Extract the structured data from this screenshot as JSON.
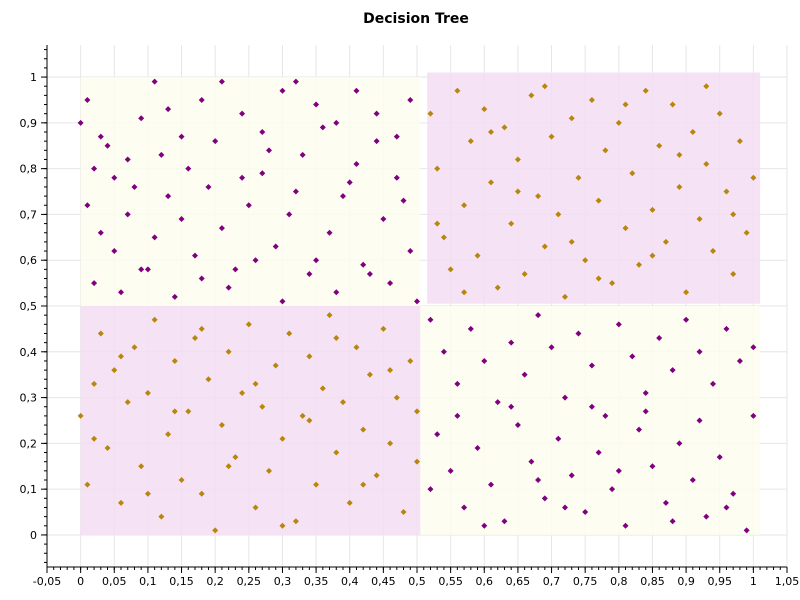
{
  "chart_data": {
    "type": "scatter",
    "title": "Decision Tree",
    "xlabel": "",
    "ylabel": "",
    "xlim": [
      -0.05,
      1.05
    ],
    "ylim": [
      -0.07,
      1.07
    ],
    "x_ticks": [
      -0.05,
      0,
      0.05,
      0.1,
      0.15,
      0.2,
      0.25,
      0.3,
      0.35,
      0.4,
      0.45,
      0.5,
      0.55,
      0.6,
      0.65,
      0.7,
      0.75,
      0.8,
      0.85,
      0.9,
      0.95,
      1,
      1.05
    ],
    "x_tick_labels": [
      "-0,05",
      "0",
      "0,05",
      "0,1",
      "0,15",
      "0,2",
      "0,25",
      "0,3",
      "0,35",
      "0,4",
      "0,45",
      "0,5",
      "0,55",
      "0,6",
      "0,65",
      "0,7",
      "0,75",
      "0,8",
      "0,85",
      "0,9",
      "0,95",
      "1",
      "1,05"
    ],
    "y_ticks": [
      0,
      0.1,
      0.2,
      0.3,
      0.4,
      0.5,
      0.6,
      0.7,
      0.8,
      0.9,
      1
    ],
    "y_tick_labels": [
      "0",
      "0,1",
      "0,2",
      "0,3",
      "0,4",
      "0,5",
      "0,6",
      "0,7",
      "0,8",
      "0,9",
      "1"
    ],
    "grid": true,
    "colors": {
      "purple": "#800080",
      "gold": "#b8860b",
      "region_purple": "#f3def3",
      "region_yellow": "#fdfdee"
    },
    "regions": [
      {
        "x": [
          0.0,
          0.505
        ],
        "y": [
          0.5,
          1.0
        ],
        "color": "region_yellow"
      },
      {
        "x": [
          0.0,
          0.505
        ],
        "y": [
          0.0,
          0.5
        ],
        "color": "region_purple"
      },
      {
        "x": [
          0.505,
          1.01
        ],
        "y": [
          0.0,
          0.5
        ],
        "color": "region_yellow"
      },
      {
        "x": [
          0.515,
          1.01
        ],
        "y": [
          0.505,
          1.01
        ],
        "color": "region_purple"
      }
    ],
    "series": [
      {
        "color": "purple",
        "points": [
          [
            0.0,
            0.9
          ],
          [
            0.01,
            0.95
          ],
          [
            0.02,
            0.8
          ],
          [
            0.03,
            0.87
          ],
          [
            0.05,
            0.78
          ],
          [
            0.07,
            0.82
          ],
          [
            0.09,
            0.91
          ],
          [
            0.11,
            0.99
          ],
          [
            0.13,
            0.93
          ],
          [
            0.15,
            0.87
          ],
          [
            0.18,
            0.95
          ],
          [
            0.21,
            0.99
          ],
          [
            0.24,
            0.92
          ],
          [
            0.27,
            0.88
          ],
          [
            0.3,
            0.97
          ],
          [
            0.32,
            0.99
          ],
          [
            0.35,
            0.94
          ],
          [
            0.38,
            0.9
          ],
          [
            0.41,
            0.97
          ],
          [
            0.44,
            0.92
          ],
          [
            0.47,
            0.87
          ],
          [
            0.49,
            0.95
          ],
          [
            0.01,
            0.72
          ],
          [
            0.03,
            0.66
          ],
          [
            0.05,
            0.62
          ],
          [
            0.07,
            0.7
          ],
          [
            0.09,
            0.58
          ],
          [
            0.11,
            0.65
          ],
          [
            0.13,
            0.74
          ],
          [
            0.15,
            0.69
          ],
          [
            0.17,
            0.61
          ],
          [
            0.19,
            0.76
          ],
          [
            0.21,
            0.67
          ],
          [
            0.23,
            0.58
          ],
          [
            0.25,
            0.72
          ],
          [
            0.27,
            0.79
          ],
          [
            0.29,
            0.63
          ],
          [
            0.31,
            0.7
          ],
          [
            0.33,
            0.83
          ],
          [
            0.35,
            0.6
          ],
          [
            0.37,
            0.66
          ],
          [
            0.39,
            0.74
          ],
          [
            0.41,
            0.81
          ],
          [
            0.43,
            0.57
          ],
          [
            0.45,
            0.69
          ],
          [
            0.47,
            0.78
          ],
          [
            0.49,
            0.62
          ],
          [
            0.02,
            0.55
          ],
          [
            0.06,
            0.53
          ],
          [
            0.1,
            0.58
          ],
          [
            0.14,
            0.52
          ],
          [
            0.18,
            0.56
          ],
          [
            0.22,
            0.54
          ],
          [
            0.26,
            0.6
          ],
          [
            0.3,
            0.51
          ],
          [
            0.34,
            0.57
          ],
          [
            0.38,
            0.53
          ],
          [
            0.42,
            0.59
          ],
          [
            0.46,
            0.55
          ],
          [
            0.5,
            0.51
          ],
          [
            0.04,
            0.85
          ],
          [
            0.08,
            0.76
          ],
          [
            0.12,
            0.83
          ],
          [
            0.16,
            0.8
          ],
          [
            0.2,
            0.86
          ],
          [
            0.24,
            0.78
          ],
          [
            0.28,
            0.84
          ],
          [
            0.32,
            0.75
          ],
          [
            0.36,
            0.89
          ],
          [
            0.4,
            0.77
          ],
          [
            0.44,
            0.86
          ],
          [
            0.48,
            0.73
          ],
          [
            0.52,
            0.47
          ],
          [
            0.54,
            0.4
          ],
          [
            0.56,
            0.33
          ],
          [
            0.58,
            0.45
          ],
          [
            0.6,
            0.38
          ],
          [
            0.62,
            0.29
          ],
          [
            0.64,
            0.42
          ],
          [
            0.66,
            0.35
          ],
          [
            0.68,
            0.48
          ],
          [
            0.7,
            0.41
          ],
          [
            0.72,
            0.3
          ],
          [
            0.74,
            0.44
          ],
          [
            0.76,
            0.37
          ],
          [
            0.78,
            0.26
          ],
          [
            0.8,
            0.46
          ],
          [
            0.82,
            0.39
          ],
          [
            0.84,
            0.31
          ],
          [
            0.86,
            0.43
          ],
          [
            0.88,
            0.36
          ],
          [
            0.9,
            0.47
          ],
          [
            0.92,
            0.4
          ],
          [
            0.94,
            0.33
          ],
          [
            0.96,
            0.45
          ],
          [
            0.98,
            0.38
          ],
          [
            1.0,
            0.41
          ],
          [
            0.53,
            0.22
          ],
          [
            0.55,
            0.14
          ],
          [
            0.57,
            0.06
          ],
          [
            0.59,
            0.19
          ],
          [
            0.61,
            0.11
          ],
          [
            0.63,
            0.03
          ],
          [
            0.65,
            0.24
          ],
          [
            0.67,
            0.16
          ],
          [
            0.69,
            0.08
          ],
          [
            0.71,
            0.21
          ],
          [
            0.73,
            0.13
          ],
          [
            0.75,
            0.05
          ],
          [
            0.77,
            0.18
          ],
          [
            0.79,
            0.1
          ],
          [
            0.81,
            0.02
          ],
          [
            0.83,
            0.23
          ],
          [
            0.85,
            0.15
          ],
          [
            0.87,
            0.07
          ],
          [
            0.89,
            0.2
          ],
          [
            0.91,
            0.12
          ],
          [
            0.93,
            0.04
          ],
          [
            0.95,
            0.17
          ],
          [
            0.97,
            0.09
          ],
          [
            0.99,
            0.01
          ],
          [
            0.52,
            0.1
          ],
          [
            0.56,
            0.26
          ],
          [
            0.6,
            0.02
          ],
          [
            0.64,
            0.28
          ],
          [
            0.68,
            0.12
          ],
          [
            0.72,
            0.06
          ],
          [
            0.76,
            0.28
          ],
          [
            0.8,
            0.14
          ],
          [
            0.84,
            0.27
          ],
          [
            0.88,
            0.03
          ],
          [
            0.92,
            0.25
          ],
          [
            0.96,
            0.06
          ],
          [
            1.0,
            0.26
          ]
        ]
      },
      {
        "color": "gold",
        "points": [
          [
            0.0,
            0.26
          ],
          [
            0.01,
            0.11
          ],
          [
            0.02,
            0.33
          ],
          [
            0.03,
            0.44
          ],
          [
            0.04,
            0.19
          ],
          [
            0.05,
            0.36
          ],
          [
            0.06,
            0.07
          ],
          [
            0.07,
            0.29
          ],
          [
            0.08,
            0.41
          ],
          [
            0.09,
            0.15
          ],
          [
            0.1,
            0.31
          ],
          [
            0.11,
            0.47
          ],
          [
            0.12,
            0.04
          ],
          [
            0.13,
            0.22
          ],
          [
            0.14,
            0.38
          ],
          [
            0.15,
            0.12
          ],
          [
            0.16,
            0.27
          ],
          [
            0.17,
            0.43
          ],
          [
            0.18,
            0.09
          ],
          [
            0.19,
            0.34
          ],
          [
            0.2,
            0.01
          ],
          [
            0.21,
            0.24
          ],
          [
            0.22,
            0.4
          ],
          [
            0.23,
            0.17
          ],
          [
            0.24,
            0.31
          ],
          [
            0.25,
            0.46
          ],
          [
            0.26,
            0.06
          ],
          [
            0.27,
            0.28
          ],
          [
            0.28,
            0.14
          ],
          [
            0.29,
            0.37
          ],
          [
            0.3,
            0.21
          ],
          [
            0.31,
            0.44
          ],
          [
            0.32,
            0.03
          ],
          [
            0.33,
            0.26
          ],
          [
            0.34,
            0.39
          ],
          [
            0.35,
            0.11
          ],
          [
            0.36,
            0.32
          ],
          [
            0.37,
            0.48
          ],
          [
            0.38,
            0.18
          ],
          [
            0.39,
            0.29
          ],
          [
            0.4,
            0.07
          ],
          [
            0.41,
            0.41
          ],
          [
            0.42,
            0.23
          ],
          [
            0.43,
            0.35
          ],
          [
            0.44,
            0.13
          ],
          [
            0.45,
            0.45
          ],
          [
            0.46,
            0.2
          ],
          [
            0.47,
            0.3
          ],
          [
            0.48,
            0.05
          ],
          [
            0.49,
            0.38
          ],
          [
            0.5,
            0.16
          ],
          [
            0.52,
            0.92
          ],
          [
            0.53,
            0.8
          ],
          [
            0.54,
            0.65
          ],
          [
            0.55,
            0.58
          ],
          [
            0.56,
            0.97
          ],
          [
            0.57,
            0.72
          ],
          [
            0.58,
            0.86
          ],
          [
            0.59,
            0.61
          ],
          [
            0.6,
            0.93
          ],
          [
            0.61,
            0.77
          ],
          [
            0.62,
            0.54
          ],
          [
            0.63,
            0.89
          ],
          [
            0.64,
            0.68
          ],
          [
            0.65,
            0.82
          ],
          [
            0.66,
            0.57
          ],
          [
            0.67,
            0.96
          ],
          [
            0.68,
            0.74
          ],
          [
            0.69,
            0.63
          ],
          [
            0.7,
            0.87
          ],
          [
            0.71,
            0.7
          ],
          [
            0.72,
            0.52
          ],
          [
            0.73,
            0.91
          ],
          [
            0.74,
            0.78
          ],
          [
            0.75,
            0.6
          ],
          [
            0.76,
            0.95
          ],
          [
            0.77,
            0.73
          ],
          [
            0.78,
            0.84
          ],
          [
            0.79,
            0.55
          ],
          [
            0.8,
            0.9
          ],
          [
            0.81,
            0.67
          ],
          [
            0.82,
            0.79
          ],
          [
            0.83,
            0.59
          ],
          [
            0.84,
            0.97
          ],
          [
            0.85,
            0.71
          ],
          [
            0.86,
            0.85
          ],
          [
            0.87,
            0.64
          ],
          [
            0.88,
            0.94
          ],
          [
            0.89,
            0.76
          ],
          [
            0.9,
            0.53
          ],
          [
            0.91,
            0.88
          ],
          [
            0.92,
            0.69
          ],
          [
            0.93,
            0.81
          ],
          [
            0.94,
            0.62
          ],
          [
            0.95,
            0.92
          ],
          [
            0.96,
            0.75
          ],
          [
            0.97,
            0.57
          ],
          [
            0.98,
            0.86
          ],
          [
            0.99,
            0.66
          ],
          [
            1.0,
            0.78
          ],
          [
            0.53,
            0.68
          ],
          [
            0.57,
            0.53
          ],
          [
            0.61,
            0.88
          ],
          [
            0.65,
            0.75
          ],
          [
            0.69,
            0.98
          ],
          [
            0.73,
            0.64
          ],
          [
            0.77,
            0.56
          ],
          [
            0.81,
            0.94
          ],
          [
            0.85,
            0.61
          ],
          [
            0.89,
            0.83
          ],
          [
            0.93,
            0.98
          ],
          [
            0.97,
            0.7
          ],
          [
            0.02,
            0.21
          ],
          [
            0.06,
            0.39
          ],
          [
            0.1,
            0.09
          ],
          [
            0.14,
            0.27
          ],
          [
            0.18,
            0.45
          ],
          [
            0.22,
            0.15
          ],
          [
            0.26,
            0.33
          ],
          [
            0.3,
            0.02
          ],
          [
            0.34,
            0.25
          ],
          [
            0.38,
            0.43
          ],
          [
            0.42,
            0.11
          ],
          [
            0.46,
            0.36
          ],
          [
            0.5,
            0.27
          ]
        ]
      }
    ]
  }
}
